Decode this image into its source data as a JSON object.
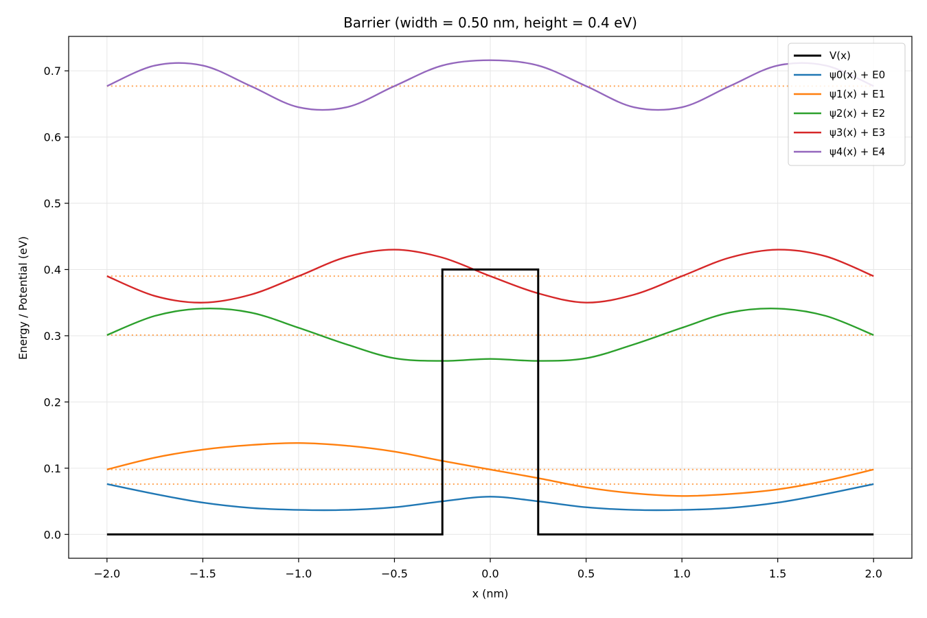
{
  "chart_data": {
    "type": "line",
    "title": "Barrier (width = 0.50 nm, height = 0.4 eV)",
    "xlabel": "x (nm)",
    "ylabel": "Energy / Potential (eV)",
    "xlim": [
      -2.2,
      2.2
    ],
    "ylim": [
      -0.036,
      0.752
    ],
    "xticks": [
      -2.0,
      -1.5,
      -1.0,
      -0.5,
      0.0,
      0.5,
      1.0,
      1.5,
      2.0
    ],
    "xtick_labels": [
      "−2.0",
      "−1.5",
      "−1.0",
      "−0.5",
      "0.0",
      "0.5",
      "1.0",
      "1.5",
      "2.0"
    ],
    "yticks": [
      0.0,
      0.1,
      0.2,
      0.3,
      0.4,
      0.5,
      0.6,
      0.7
    ],
    "ytick_labels": [
      "0.0",
      "0.1",
      "0.2",
      "0.3",
      "0.4",
      "0.5",
      "0.6",
      "0.7"
    ],
    "grid": true,
    "legend_position": "top-right",
    "potential": {
      "name": "V(x)",
      "color": "#000000",
      "x": [
        -2.0,
        -0.25,
        -0.25,
        0.25,
        0.25,
        2.0
      ],
      "y": [
        0.0,
        0.0,
        0.4,
        0.4,
        0.0,
        0.0
      ]
    },
    "energy_levels": {
      "color": "#ff7f0e",
      "style": "dotted",
      "values": [
        0.076,
        0.098,
        0.301,
        0.39,
        0.677
      ]
    },
    "series": [
      {
        "name": "ψ0(x) + E0",
        "color": "#1f77b4",
        "x": [
          -2.0,
          -1.75,
          -1.5,
          -1.25,
          -1.0,
          -0.75,
          -0.5,
          -0.25,
          0.0,
          0.25,
          0.5,
          0.75,
          1.0,
          1.25,
          1.5,
          1.75,
          2.0
        ],
        "y": [
          0.076,
          0.061,
          0.048,
          0.04,
          0.037,
          0.037,
          0.041,
          0.05,
          0.057,
          0.05,
          0.041,
          0.037,
          0.037,
          0.04,
          0.048,
          0.061,
          0.076
        ]
      },
      {
        "name": "ψ1(x) + E1",
        "color": "#ff7f0e",
        "x": [
          -2.0,
          -1.75,
          -1.5,
          -1.25,
          -1.0,
          -0.75,
          -0.5,
          -0.25,
          0.0,
          0.25,
          0.5,
          0.75,
          1.0,
          1.25,
          1.5,
          1.75,
          2.0
        ],
        "y": [
          0.098,
          0.116,
          0.128,
          0.135,
          0.138,
          0.134,
          0.125,
          0.111,
          0.098,
          0.085,
          0.071,
          0.062,
          0.058,
          0.061,
          0.068,
          0.081,
          0.098
        ]
      },
      {
        "name": "ψ2(x) + E2",
        "color": "#2ca02c",
        "x": [
          -2.0,
          -1.75,
          -1.5,
          -1.25,
          -1.0,
          -0.75,
          -0.5,
          -0.25,
          0.0,
          0.25,
          0.5,
          0.75,
          1.0,
          1.25,
          1.5,
          1.75,
          2.0
        ],
        "y": [
          0.301,
          0.33,
          0.341,
          0.335,
          0.312,
          0.287,
          0.266,
          0.262,
          0.265,
          0.262,
          0.266,
          0.287,
          0.312,
          0.335,
          0.341,
          0.33,
          0.301
        ]
      },
      {
        "name": "ψ3(x) + E3",
        "color": "#d62728",
        "x": [
          -2.0,
          -1.75,
          -1.5,
          -1.25,
          -1.0,
          -0.75,
          -0.5,
          -0.25,
          0.0,
          0.25,
          0.5,
          0.75,
          1.0,
          1.25,
          1.5,
          1.75,
          2.0
        ],
        "y": [
          0.39,
          0.36,
          0.35,
          0.362,
          0.39,
          0.419,
          0.43,
          0.418,
          0.39,
          0.364,
          0.35,
          0.362,
          0.39,
          0.418,
          0.43,
          0.42,
          0.39
        ]
      },
      {
        "name": "ψ4(x) + E4",
        "color": "#9467bd",
        "x": [
          -2.0,
          -1.75,
          -1.5,
          -1.25,
          -1.0,
          -0.75,
          -0.5,
          -0.25,
          0.0,
          0.25,
          0.5,
          0.75,
          1.0,
          1.25,
          1.5,
          1.75,
          2.0
        ],
        "y": [
          0.677,
          0.708,
          0.708,
          0.677,
          0.645,
          0.645,
          0.677,
          0.708,
          0.716,
          0.708,
          0.677,
          0.645,
          0.645,
          0.677,
          0.708,
          0.708,
          0.677
        ]
      }
    ]
  }
}
